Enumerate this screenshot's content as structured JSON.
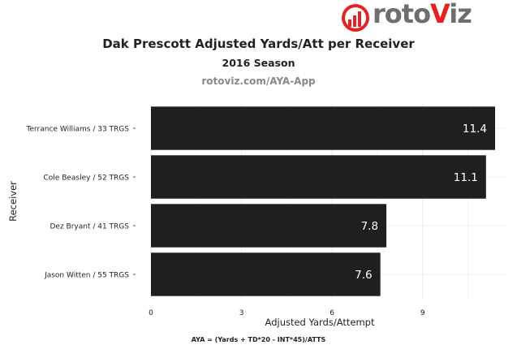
{
  "brand": {
    "name_prefix": "roto",
    "name_v": "V",
    "name_suffix": "iz"
  },
  "chart_data": {
    "type": "bar",
    "orientation": "horizontal",
    "title": "Dak Prescott Adjusted Yards/Att per Receiver",
    "subtitle": "2016 Season",
    "source": "rotoviz.com/AYA-App",
    "xlabel": "Adjusted Yards/Attempt",
    "ylabel": "Receiver",
    "categories": [
      "Terrance Williams / 33 TRGS",
      "Cole Beasley / 52 TRGS",
      "Dez Bryant / 41 TRGS",
      "Jason Witten / 55 TRGS"
    ],
    "values": [
      11.4,
      11.1,
      7.8,
      7.6
    ],
    "value_labels": [
      "11.4",
      "11.1",
      "7.8",
      "7.6"
    ],
    "xticks": [
      0,
      3,
      6,
      9
    ],
    "xlim": [
      0,
      11.75
    ],
    "grid": true,
    "legend": "none",
    "bar_color": "#1f1f1f",
    "footnote": "AYA = (Yards + TD*20 - INT*45)/ATTS"
  }
}
